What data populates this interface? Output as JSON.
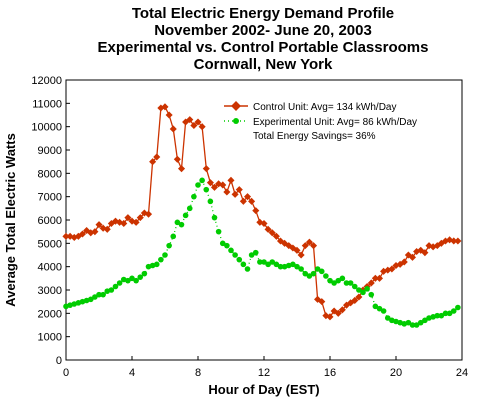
{
  "chart_data": {
    "type": "line",
    "title_lines": [
      "Total Electric Energy Demand Profile",
      "November 2002- June 20, 2003",
      "Experimental vs. Control Portable Classrooms",
      "Cornwall, New York"
    ],
    "xlabel": "Hour of Day (EST)",
    "ylabel": "Average Total Electric Watts",
    "xlim": [
      0,
      24
    ],
    "ylim": [
      0,
      12000
    ],
    "x_ticks": [
      0,
      4,
      8,
      12,
      16,
      20,
      24
    ],
    "y_ticks": [
      0,
      1000,
      2000,
      3000,
      4000,
      5000,
      6000,
      7000,
      8000,
      9000,
      10000,
      11000,
      12000
    ],
    "grid": false,
    "legend_position": "top-right",
    "series": [
      {
        "name": "Control Unit: Avg= 134 kWh/Day",
        "color": "#cc3300",
        "marker": "diamond",
        "line": "solid",
        "points": [
          [
            0.0,
            5300
          ],
          [
            0.25,
            5300
          ],
          [
            0.5,
            5250
          ],
          [
            0.75,
            5300
          ],
          [
            1.0,
            5400
          ],
          [
            1.25,
            5550
          ],
          [
            1.5,
            5450
          ],
          [
            1.75,
            5500
          ],
          [
            2.0,
            5800
          ],
          [
            2.25,
            5650
          ],
          [
            2.5,
            5600
          ],
          [
            2.75,
            5850
          ],
          [
            3.0,
            5950
          ],
          [
            3.25,
            5900
          ],
          [
            3.5,
            5850
          ],
          [
            3.75,
            6100
          ],
          [
            4.0,
            5950
          ],
          [
            4.25,
            5900
          ],
          [
            4.5,
            6100
          ],
          [
            4.75,
            6300
          ],
          [
            5.0,
            6250
          ],
          [
            5.25,
            8500
          ],
          [
            5.5,
            8700
          ],
          [
            5.75,
            10800
          ],
          [
            6.0,
            10850
          ],
          [
            6.25,
            10500
          ],
          [
            6.5,
            9900
          ],
          [
            6.75,
            8600
          ],
          [
            7.0,
            8200
          ],
          [
            7.25,
            10200
          ],
          [
            7.5,
            10300
          ],
          [
            7.75,
            10050
          ],
          [
            8.0,
            10200
          ],
          [
            8.25,
            10000
          ],
          [
            8.5,
            8200
          ],
          [
            8.75,
            7600
          ],
          [
            9.0,
            7400
          ],
          [
            9.25,
            7550
          ],
          [
            9.5,
            7500
          ],
          [
            9.75,
            7200
          ],
          [
            10.0,
            7700
          ],
          [
            10.25,
            7100
          ],
          [
            10.5,
            7300
          ],
          [
            10.75,
            6800
          ],
          [
            11.0,
            7000
          ],
          [
            11.25,
            6800
          ],
          [
            11.5,
            6400
          ],
          [
            11.75,
            5900
          ],
          [
            12.0,
            5850
          ],
          [
            12.25,
            5600
          ],
          [
            12.5,
            5450
          ],
          [
            12.75,
            5300
          ],
          [
            13.0,
            5100
          ],
          [
            13.25,
            5000
          ],
          [
            13.5,
            4900
          ],
          [
            13.75,
            4800
          ],
          [
            14.0,
            4700
          ],
          [
            14.25,
            4500
          ],
          [
            14.5,
            4900
          ],
          [
            14.75,
            5050
          ],
          [
            15.0,
            4900
          ],
          [
            15.25,
            2600
          ],
          [
            15.5,
            2500
          ],
          [
            15.75,
            1900
          ],
          [
            16.0,
            1850
          ],
          [
            16.25,
            2100
          ],
          [
            16.5,
            2000
          ],
          [
            16.75,
            2150
          ],
          [
            17.0,
            2350
          ],
          [
            17.25,
            2450
          ],
          [
            17.5,
            2550
          ],
          [
            17.75,
            2700
          ],
          [
            18.0,
            3000
          ],
          [
            18.25,
            3150
          ],
          [
            18.5,
            3300
          ],
          [
            18.75,
            3500
          ],
          [
            19.0,
            3500
          ],
          [
            19.25,
            3800
          ],
          [
            19.5,
            3850
          ],
          [
            19.75,
            3900
          ],
          [
            20.0,
            4050
          ],
          [
            20.25,
            4100
          ],
          [
            20.5,
            4200
          ],
          [
            20.75,
            4500
          ],
          [
            21.0,
            4400
          ],
          [
            21.25,
            4650
          ],
          [
            21.5,
            4700
          ],
          [
            21.75,
            4600
          ],
          [
            22.0,
            4900
          ],
          [
            22.25,
            4850
          ],
          [
            22.5,
            4900
          ],
          [
            22.75,
            5000
          ],
          [
            23.0,
            5100
          ],
          [
            23.25,
            5150
          ],
          [
            23.5,
            5100
          ],
          [
            23.75,
            5100
          ]
        ]
      },
      {
        "name": "Experimental Unit: Avg= 86 kWh/Day",
        "color": "#00cc00",
        "marker": "circle",
        "line": "dotted",
        "points": [
          [
            0.0,
            2300
          ],
          [
            0.25,
            2350
          ],
          [
            0.5,
            2400
          ],
          [
            0.75,
            2450
          ],
          [
            1.0,
            2500
          ],
          [
            1.25,
            2550
          ],
          [
            1.5,
            2600
          ],
          [
            1.75,
            2700
          ],
          [
            2.0,
            2800
          ],
          [
            2.25,
            2800
          ],
          [
            2.5,
            2950
          ],
          [
            2.75,
            3000
          ],
          [
            3.0,
            3150
          ],
          [
            3.25,
            3300
          ],
          [
            3.5,
            3450
          ],
          [
            3.75,
            3400
          ],
          [
            4.0,
            3500
          ],
          [
            4.25,
            3400
          ],
          [
            4.5,
            3550
          ],
          [
            4.75,
            3700
          ],
          [
            5.0,
            4000
          ],
          [
            5.25,
            4050
          ],
          [
            5.5,
            4100
          ],
          [
            5.75,
            4300
          ],
          [
            6.0,
            4500
          ],
          [
            6.25,
            4900
          ],
          [
            6.5,
            5300
          ],
          [
            6.75,
            5900
          ],
          [
            7.0,
            5800
          ],
          [
            7.25,
            6200
          ],
          [
            7.5,
            6500
          ],
          [
            7.75,
            7000
          ],
          [
            8.0,
            7500
          ],
          [
            8.25,
            7700
          ],
          [
            8.5,
            7300
          ],
          [
            8.75,
            6800
          ],
          [
            9.0,
            6100
          ],
          [
            9.25,
            5500
          ],
          [
            9.5,
            5000
          ],
          [
            9.75,
            4900
          ],
          [
            10.0,
            4700
          ],
          [
            10.25,
            4500
          ],
          [
            10.5,
            4300
          ],
          [
            10.75,
            4100
          ],
          [
            11.0,
            3900
          ],
          [
            11.25,
            4500
          ],
          [
            11.5,
            4600
          ],
          [
            11.75,
            4200
          ],
          [
            12.0,
            4200
          ],
          [
            12.25,
            4100
          ],
          [
            12.5,
            4200
          ],
          [
            12.75,
            4100
          ],
          [
            13.0,
            4000
          ],
          [
            13.25,
            4000
          ],
          [
            13.5,
            4050
          ],
          [
            13.75,
            4100
          ],
          [
            14.0,
            4000
          ],
          [
            14.25,
            3900
          ],
          [
            14.5,
            3700
          ],
          [
            14.75,
            3600
          ],
          [
            15.0,
            3700
          ],
          [
            15.25,
            3900
          ],
          [
            15.5,
            3800
          ],
          [
            15.75,
            3600
          ],
          [
            16.0,
            3400
          ],
          [
            16.25,
            3300
          ],
          [
            16.5,
            3400
          ],
          [
            16.75,
            3500
          ],
          [
            17.0,
            3300
          ],
          [
            17.25,
            3300
          ],
          [
            17.5,
            3150
          ],
          [
            17.75,
            3000
          ],
          [
            18.0,
            2900
          ],
          [
            18.25,
            3050
          ],
          [
            18.5,
            2800
          ],
          [
            18.75,
            2300
          ],
          [
            19.0,
            2200
          ],
          [
            19.25,
            2100
          ],
          [
            19.5,
            1800
          ],
          [
            19.75,
            1700
          ],
          [
            20.0,
            1650
          ],
          [
            20.25,
            1600
          ],
          [
            20.5,
            1550
          ],
          [
            20.75,
            1600
          ],
          [
            21.0,
            1500
          ],
          [
            21.25,
            1500
          ],
          [
            21.5,
            1600
          ],
          [
            21.75,
            1700
          ],
          [
            22.0,
            1800
          ],
          [
            22.25,
            1850
          ],
          [
            22.5,
            1900
          ],
          [
            22.75,
            1900
          ],
          [
            23.0,
            2000
          ],
          [
            23.25,
            2000
          ],
          [
            23.5,
            2100
          ],
          [
            23.75,
            2250
          ]
        ]
      }
    ],
    "annotations": [
      "Total Energy Savings= 36%"
    ]
  }
}
